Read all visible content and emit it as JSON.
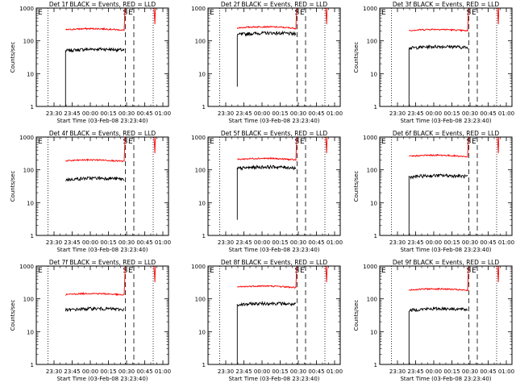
{
  "chart_data": [
    {
      "type": "line",
      "title": "Det 1f BLACK = Events, RED = LLD",
      "xlabel": "Start Time (03-Feb-08 23:23:40)",
      "ylabel": "Counts/sec",
      "ylog": true,
      "ylim": [
        1,
        1000
      ],
      "y_ticks": [
        "1",
        "10",
        "100",
        "1000"
      ],
      "x_ticks": [
        "23:30",
        "23:45",
        "00:00",
        "00:15",
        "00:30",
        "00:45",
        "01:00"
      ],
      "markers": [
        "E",
        "S",
        "E"
      ],
      "series": [
        {
          "name": "BLACK",
          "color": "#000000",
          "level": 50,
          "start_level": 1
        },
        {
          "name": "RED",
          "color": "#ff0000",
          "level": 210
        }
      ]
    },
    {
      "type": "line",
      "title": "Det 2f BLACK = Events, RED = LLD",
      "xlabel": "Start Time (03-Feb-08 23:23:40)",
      "ylabel": "",
      "ylog": true,
      "ylim": [
        1,
        1000
      ],
      "y_ticks": [
        "1",
        "10",
        "100",
        "1000"
      ],
      "x_ticks": [
        "23:30",
        "23:45",
        "00:00",
        "00:15",
        "00:30",
        "00:45",
        "01:00"
      ],
      "markers": [
        "E",
        "S",
        "E"
      ],
      "series": [
        {
          "name": "BLACK",
          "color": "#000000",
          "level": 155,
          "start_level": 4
        },
        {
          "name": "RED",
          "color": "#ff0000",
          "level": 240
        }
      ]
    },
    {
      "type": "line",
      "title": "Det 3f BLACK = Events, RED = LLD",
      "xlabel": "Start Time (03-Feb-08 23:23:40)",
      "ylabel": "Counts/sec",
      "ylog": true,
      "ylim": [
        1,
        1000
      ],
      "y_ticks": [
        "1",
        "10",
        "100",
        "1000"
      ],
      "x_ticks": [
        "23:30",
        "23:45",
        "00:00",
        "00:15",
        "00:30",
        "00:45",
        "01:00"
      ],
      "markers": [
        "E",
        "S",
        "E"
      ],
      "series": [
        {
          "name": "BLACK",
          "color": "#000000",
          "level": 60,
          "start_level": 1
        },
        {
          "name": "RED",
          "color": "#ff0000",
          "level": 200
        }
      ]
    },
    {
      "type": "line",
      "title": "Det 4f BLACK = Events, RED = LLD",
      "xlabel": "Start Time (03-Feb-08 23:23:40)",
      "ylabel": "Counts/sec",
      "ylog": true,
      "ylim": [
        1,
        1000
      ],
      "y_ticks": [
        "1",
        "10",
        "100",
        "1000"
      ],
      "x_ticks": [
        "23:30",
        "23:45",
        "00:00",
        "00:15",
        "00:30",
        "00:45",
        "01:00"
      ],
      "markers": [
        "E",
        "S",
        "E"
      ],
      "series": [
        {
          "name": "BLACK",
          "color": "#000000",
          "level": 50
        },
        {
          "name": "RED",
          "color": "#ff0000",
          "level": 180
        }
      ]
    },
    {
      "type": "line",
      "title": "Det 5f BLACK = Events, RED = LLD",
      "xlabel": "Start Time (03-Feb-08 23:23:40)",
      "ylabel": "",
      "ylog": true,
      "ylim": [
        1,
        1000
      ],
      "y_ticks": [
        "1",
        "10",
        "100",
        "1000"
      ],
      "x_ticks": [
        "23:30",
        "23:45",
        "00:00",
        "00:15",
        "00:30",
        "00:45",
        "01:00"
      ],
      "markers": [
        "E",
        "S",
        "E"
      ],
      "series": [
        {
          "name": "BLACK",
          "color": "#000000",
          "level": 110,
          "start_level": 3
        },
        {
          "name": "RED",
          "color": "#ff0000",
          "level": 200
        }
      ]
    },
    {
      "type": "line",
      "title": "Det 6f BLACK = Events, RED = LLD",
      "xlabel": "Start Time (03-Feb-08 23:23:40)",
      "ylabel": "Counts/sec",
      "ylog": true,
      "ylim": [
        1,
        1000
      ],
      "y_ticks": [
        "1",
        "10",
        "100",
        "1000"
      ],
      "x_ticks": [
        "23:30",
        "23:45",
        "00:00",
        "00:15",
        "00:30",
        "00:45",
        "01:00"
      ],
      "markers": [
        "E",
        "S",
        "E"
      ],
      "series": [
        {
          "name": "BLACK",
          "color": "#000000",
          "level": 60,
          "start_level": 1
        },
        {
          "name": "RED",
          "color": "#ff0000",
          "level": 250
        }
      ]
    },
    {
      "type": "line",
      "title": "Det 7f BLACK = Events, RED = LLD",
      "xlabel": "Start Time (03-Feb-08 23:23:40)",
      "ylabel": "Counts/sec",
      "ylog": true,
      "ylim": [
        1,
        1000
      ],
      "y_ticks": [
        "1",
        "10",
        "100",
        "1000"
      ],
      "x_ticks": [
        "23:30",
        "23:45",
        "00:00",
        "00:15",
        "00:30",
        "00:45",
        "01:00"
      ],
      "markers": [
        "E",
        "S",
        "E"
      ],
      "series": [
        {
          "name": "BLACK",
          "color": "#000000",
          "level": 45
        },
        {
          "name": "RED",
          "color": "#ff0000",
          "level": 130
        }
      ]
    },
    {
      "type": "line",
      "title": "Det 8f BLACK = Events, RED = LLD",
      "xlabel": "Start Time (03-Feb-08 23:23:40)",
      "ylabel": "",
      "ylog": true,
      "ylim": [
        1,
        1000
      ],
      "y_ticks": [
        "1",
        "10",
        "100",
        "1000"
      ],
      "x_ticks": [
        "23:30",
        "23:45",
        "00:00",
        "00:15",
        "00:30",
        "00:45",
        "01:00"
      ],
      "markers": [
        "E",
        "S",
        "E"
      ],
      "series": [
        {
          "name": "BLACK",
          "color": "#000000",
          "level": 65,
          "start_level": 1
        },
        {
          "name": "RED",
          "color": "#ff0000",
          "level": 220
        }
      ]
    },
    {
      "type": "line",
      "title": "Det 9f BLACK = Events, RED = LLD",
      "xlabel": "Start Time (03-Feb-08 23:23:40)",
      "ylabel": "Counts/sec",
      "ylog": true,
      "ylim": [
        1,
        1000
      ],
      "y_ticks": [
        "1",
        "10",
        "100",
        "1000"
      ],
      "x_ticks": [
        "23:30",
        "23:45",
        "00:00",
        "00:15",
        "00:30",
        "00:45",
        "01:00"
      ],
      "markers": [
        "E",
        "S",
        "E"
      ],
      "series": [
        {
          "name": "BLACK",
          "color": "#000000",
          "level": 45,
          "start_level": 1
        },
        {
          "name": "RED",
          "color": "#ff0000",
          "level": 180
        }
      ]
    }
  ]
}
